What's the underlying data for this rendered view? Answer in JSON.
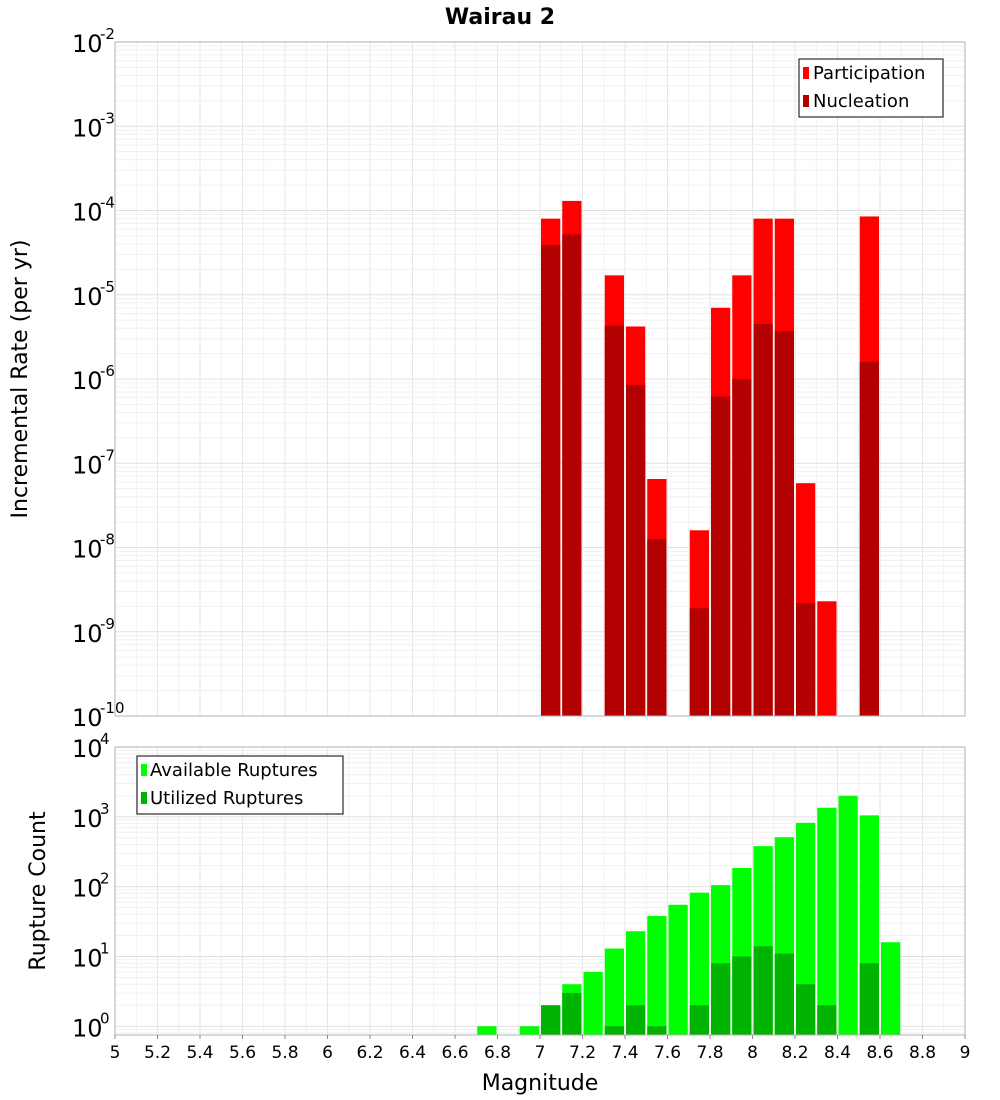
{
  "chart_data": [
    {
      "type": "bar",
      "title": "Wairau 2",
      "xlabel": "",
      "ylabel": "Incremental Rate (per yr)",
      "xlim": [
        5,
        9
      ],
      "ylim": [
        1e-10,
        0.01
      ],
      "yscale": "log",
      "grid": true,
      "legend_position": "top-right",
      "bar_width": 0.1,
      "series": [
        {
          "name": "Participation",
          "color": "#ff0000",
          "x": [
            7.05,
            7.15,
            7.35,
            7.45,
            7.55,
            7.75,
            7.85,
            7.95,
            8.05,
            8.15,
            8.25,
            8.35,
            8.55
          ],
          "values": [
            8e-05,
            0.00013,
            1.7e-05,
            4.2e-06,
            6.5e-08,
            1.6e-08,
            7e-06,
            1.7e-05,
            8e-05,
            8e-05,
            5.8e-08,
            2.3e-09,
            8.5e-05
          ]
        },
        {
          "name": "Nucleation",
          "color": "#b30000",
          "x": [
            7.05,
            7.15,
            7.35,
            7.45,
            7.55,
            7.75,
            7.85,
            7.95,
            8.05,
            8.15,
            8.25,
            8.55
          ],
          "values": [
            3.9e-05,
            5.2e-05,
            4.3e-06,
            8.5e-07,
            1.25e-08,
            1.9e-09,
            6.2e-07,
            1e-06,
            4.5e-06,
            3.7e-06,
            2.2e-09,
            1.6e-06
          ]
        }
      ]
    },
    {
      "type": "bar",
      "title": "",
      "xlabel": "Magnitude",
      "ylabel": "Rupture Count",
      "xlim": [
        5,
        9
      ],
      "ylim": [
        0.75,
        10000.0
      ],
      "yscale": "log",
      "grid": true,
      "legend_position": "top-left",
      "bar_width": 0.1,
      "xticks": [
        "5",
        "5.2",
        "5.4",
        "5.6",
        "5.8",
        "6",
        "6.2",
        "6.4",
        "6.6",
        "6.8",
        "7",
        "7.2",
        "7.4",
        "7.6",
        "7.8",
        "8",
        "8.2",
        "8.4",
        "8.6",
        "8.8",
        "9"
      ],
      "series": [
        {
          "name": "Available Ruptures",
          "color": "#00ff00",
          "x": [
            6.75,
            6.95,
            7.05,
            7.15,
            7.25,
            7.35,
            7.45,
            7.55,
            7.65,
            7.75,
            7.85,
            7.95,
            8.05,
            8.15,
            8.25,
            8.35,
            8.45,
            8.55,
            8.65
          ],
          "values": [
            1,
            1,
            2,
            4,
            6,
            13,
            23,
            38,
            55,
            82,
            105,
            185,
            380,
            510,
            820,
            1350,
            2000,
            1050,
            16
          ]
        },
        {
          "name": "Utilized Ruptures",
          "color": "#00b300",
          "x": [
            7.05,
            7.15,
            7.35,
            7.45,
            7.55,
            7.75,
            7.85,
            7.95,
            8.05,
            8.15,
            8.25,
            8.35,
            8.55
          ],
          "values": [
            2,
            3,
            1,
            2,
            1,
            2,
            8,
            10,
            14,
            11,
            4,
            2,
            8
          ]
        }
      ]
    }
  ]
}
